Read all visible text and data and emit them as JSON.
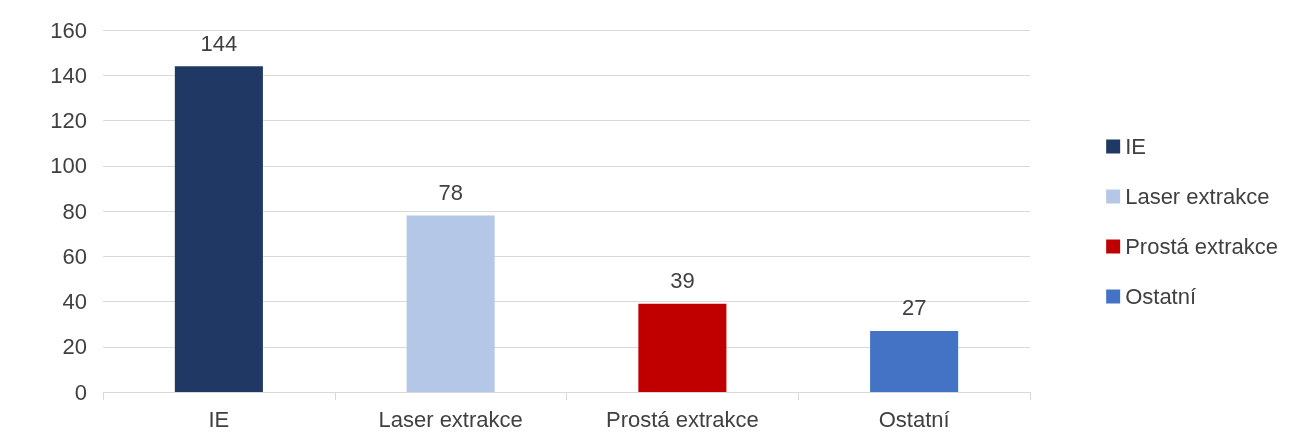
{
  "chart_data": {
    "type": "bar",
    "categories": [
      "IE",
      "Laser extrakce",
      "Prostá extrakce",
      "Ostatní"
    ],
    "series": [
      {
        "name": "IE",
        "color": "#203864",
        "values": [
          144,
          null,
          null,
          null
        ]
      },
      {
        "name": "Laser extrakce",
        "color": "#b4c7e7",
        "values": [
          null,
          78,
          null,
          null
        ]
      },
      {
        "name": "Prostá extrakce",
        "color": "#c00000",
        "values": [
          null,
          null,
          39,
          null
        ]
      },
      {
        "name": "Ostatní",
        "color": "#4472c4",
        "values": [
          null,
          null,
          null,
          27
        ]
      }
    ],
    "ylim": [
      0,
      160
    ],
    "yticks": [
      0,
      20,
      40,
      60,
      80,
      100,
      120,
      140,
      160
    ],
    "grid": "y",
    "legend": "right",
    "data_labels": true
  }
}
